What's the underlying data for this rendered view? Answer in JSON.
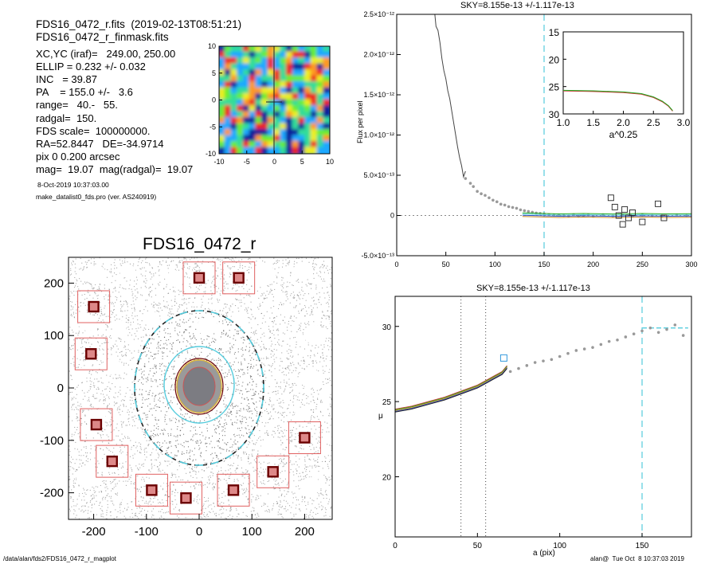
{
  "info": {
    "filename": "FDS16_0472_r.fits  (2019-02-13T08:51:21)",
    "maskfile": "FDS16_0472_r_finmask.fits",
    "lines": [
      "XC,YC (iraf)=   249.00, 250.00",
      "ELLIP = 0.232 +/- 0.032",
      "INC   = 39.87",
      "PA    = 155.0 +/-   3.6",
      "range=   40.-   55.",
      "radgal=  150.",
      "FDS scale=  100000000.",
      "RA=52.8447   DE=-34.9714",
      "pix 0 0.200 arcsec",
      "mag=  19.07  mag(radgal)=  19.07"
    ],
    "date": "8-Oct-2019 10:37:03.00",
    "program": "make_datalist0_fds.pro (ver. AS240919)"
  },
  "footer": {
    "path": "/data/alan/fds2/FDS16_0472_r_magplot",
    "stamp": "alan@  Tue Oct  8 10:37:03 2019"
  },
  "colors": {
    "cyan": "#55ccdd",
    "red_box": "#e06060",
    "dark_box": "#6b0000",
    "green": "#22aa22",
    "points": "#999999",
    "ellipse_gold": "#d9b23a"
  },
  "chart_data": [
    {
      "type": "heatmap",
      "name": "residual-map",
      "xlim": [
        -10,
        10
      ],
      "ylim": [
        -10,
        10
      ],
      "xticks": [
        "-10",
        "-5",
        "0",
        "5",
        "10"
      ],
      "yticks": [
        "10",
        "5",
        "0",
        "-5",
        "-10"
      ]
    },
    {
      "type": "scatter",
      "name": "image-panel",
      "title": "FDS16_0472_r",
      "xlim": [
        -250,
        250
      ],
      "ylim": [
        -250,
        250
      ],
      "xticks": [
        "-200",
        "-100",
        "0",
        "100",
        "200"
      ],
      "yticks": [
        "200",
        "100",
        "0",
        "-100",
        "-200"
      ],
      "mask_boxes": [
        [
          -200,
          155
        ],
        [
          -205,
          65
        ],
        [
          -195,
          -70
        ],
        [
          -165,
          -140
        ],
        [
          -90,
          -195
        ],
        [
          -25,
          -210
        ],
        [
          0,
          210
        ],
        [
          75,
          210
        ],
        [
          65,
          -195
        ],
        [
          140,
          -160
        ],
        [
          200,
          -95
        ]
      ]
    },
    {
      "type": "line",
      "name": "flux-profile",
      "title": "SKY=8.155e-13 +/-1.117e-13",
      "ylabel": "Flux per pixel",
      "xlim": [
        0,
        300
      ],
      "ylim": [
        -5e-13,
        2.5e-12
      ],
      "xticks": [
        "0",
        "50",
        "100",
        "150",
        "200",
        "250",
        "300"
      ],
      "yticks": [
        "2.5×10⁻¹²",
        "2.0×10⁻¹²",
        "1.5×10⁻¹²",
        "1.0×10⁻¹²",
        "5.0×10⁻¹³",
        "0",
        "-5.0×10⁻¹³"
      ],
      "radgal": 150,
      "profile": [
        [
          38,
          2.6e-12
        ],
        [
          40,
          2.35e-12
        ],
        [
          42,
          2.3e-12
        ],
        [
          44,
          2.15e-12
        ],
        [
          46,
          1.95e-12
        ],
        [
          48,
          1.8e-12
        ],
        [
          50,
          1.7e-12
        ],
        [
          52,
          1.55e-12
        ],
        [
          54,
          1.45e-12
        ],
        [
          56,
          1.3e-12
        ],
        [
          58,
          1.15e-12
        ],
        [
          60,
          1e-12
        ],
        [
          62,
          8.5e-13
        ],
        [
          64,
          7.2e-13
        ],
        [
          66,
          6.2e-13
        ],
        [
          68,
          4.8e-13
        ],
        [
          70,
          5.5e-13
        ]
      ],
      "points": [
        [
          70,
          4.6e-13
        ],
        [
          75,
          4e-13
        ],
        [
          78,
          3.6e-13
        ],
        [
          82,
          3e-13
        ],
        [
          86,
          2.7e-13
        ],
        [
          90,
          2.5e-13
        ],
        [
          94,
          2.2e-13
        ],
        [
          98,
          1.9e-13
        ],
        [
          102,
          1.7e-13
        ],
        [
          106,
          1.4e-13
        ],
        [
          110,
          1.3e-13
        ],
        [
          114,
          1.1e-13
        ],
        [
          118,
          1e-13
        ],
        [
          122,
          9e-14
        ],
        [
          126,
          7e-14
        ],
        [
          130,
          6e-14
        ],
        [
          134,
          5e-14
        ],
        [
          138,
          4e-14
        ],
        [
          142,
          3e-14
        ],
        [
          146,
          2.5e-14
        ],
        [
          150,
          2e-14
        ],
        [
          155,
          1e-14
        ],
        [
          160,
          5e-15
        ],
        [
          165,
          8e-15
        ],
        [
          170,
          0.0
        ],
        [
          175,
          -5e-15
        ],
        [
          180,
          1e-14
        ],
        [
          185,
          -1e-14
        ],
        [
          190,
          0.0
        ],
        [
          195,
          5e-15
        ],
        [
          200,
          -1e-14
        ],
        [
          210,
          1e-14
        ],
        [
          220,
          -5e-15
        ],
        [
          230,
          1e-14
        ],
        [
          240,
          -1e-14
        ],
        [
          250,
          5e-15
        ],
        [
          260,
          0.0
        ],
        [
          270,
          -5e-15
        ],
        [
          285,
          5e-15
        ],
        [
          295,
          0.0
        ]
      ],
      "boxes": [
        [
          218,
          2.2e-13
        ],
        [
          222,
          1.05e-13
        ],
        [
          226,
          0.0
        ],
        [
          232,
          7.5e-14
        ],
        [
          236,
          -3e-14
        ],
        [
          240,
          3.5e-14
        ],
        [
          266,
          1.45e-13
        ],
        [
          272,
          -3e-14
        ],
        [
          230,
          -1.1e-13
        ],
        [
          250,
          -8e-14
        ]
      ],
      "inset": {
        "xlabel": "a^0.25",
        "xlim": [
          1.0,
          3.0
        ],
        "ylim": [
          15,
          30
        ],
        "xticks": [
          "1.0",
          "1.5",
          "2.0",
          "2.5",
          "3.0"
        ],
        "yticks": [
          "15",
          "20",
          "25",
          "30"
        ],
        "curve": [
          [
            1.0,
            25.8
          ],
          [
            1.5,
            25.9
          ],
          [
            2.0,
            26.1
          ],
          [
            2.3,
            26.4
          ],
          [
            2.5,
            27.0
          ],
          [
            2.65,
            27.8
          ],
          [
            2.75,
            28.6
          ],
          [
            2.82,
            29.5
          ]
        ]
      }
    },
    {
      "type": "line",
      "name": "surface-brightness-profile",
      "title": "SKY=8.155e-13 +/-1.117e-13",
      "xlabel": "a (pix)",
      "ylabel": "μ",
      "xlim": [
        0,
        180
      ],
      "ylim": [
        32,
        16
      ],
      "xticks": [
        "0",
        "50",
        "100",
        "150"
      ],
      "yticks": [
        "20",
        "25",
        "30"
      ],
      "range_lines": [
        40,
        55
      ],
      "radgal": 150,
      "profile": [
        [
          0,
          24.4
        ],
        [
          10,
          24.6
        ],
        [
          20,
          24.9
        ],
        [
          30,
          25.2
        ],
        [
          40,
          25.6
        ],
        [
          50,
          26.0
        ],
        [
          55,
          26.3
        ],
        [
          60,
          26.6
        ],
        [
          65,
          26.9
        ],
        [
          68,
          27.3
        ]
      ],
      "points": [
        [
          70,
          27.0
        ],
        [
          75,
          27.2
        ],
        [
          80,
          27.4
        ],
        [
          85,
          27.6
        ],
        [
          90,
          27.7
        ],
        [
          95,
          27.8
        ],
        [
          100,
          28.0
        ],
        [
          105,
          28.2
        ],
        [
          110,
          28.4
        ],
        [
          115,
          28.5
        ],
        [
          120,
          28.6
        ],
        [
          125,
          28.8
        ],
        [
          130,
          29.0
        ],
        [
          135,
          29.1
        ],
        [
          140,
          29.3
        ],
        [
          145,
          29.5
        ],
        [
          150,
          29.7
        ],
        [
          155,
          29.9
        ],
        [
          160,
          29.6
        ],
        [
          165,
          29.8
        ],
        [
          170,
          30.1
        ],
        [
          175,
          29.4
        ]
      ],
      "box": [
        66,
        27.9
      ],
      "sky_segment": [
        [
          150,
          29.9
        ],
        [
          178,
          29.9
        ]
      ]
    }
  ]
}
